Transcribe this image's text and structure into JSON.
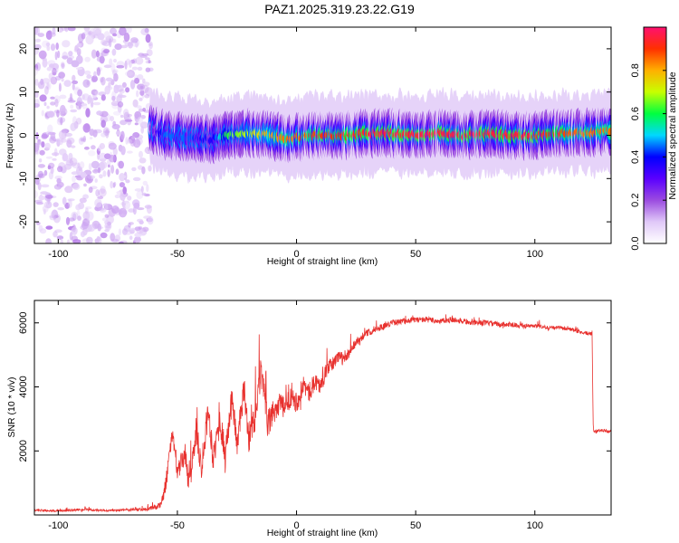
{
  "figure_title": "PAZ1.2025.319.23.22.G19",
  "chart_data": [
    {
      "type": "heatmap",
      "title": "",
      "xlabel": "Height of straight line (km)",
      "ylabel": "Frequency (Hz)",
      "xlim": [
        -110,
        132
      ],
      "ylim": [
        -25,
        25
      ],
      "xticks": [
        -100,
        -50,
        0,
        50,
        100
      ],
      "yticks": [
        -20,
        -10,
        0,
        10,
        20
      ],
      "colorbar": {
        "label": "Normalized spectral amplitude",
        "range": [
          0,
          1
        ],
        "ticks": [
          0.0,
          0.2,
          0.4,
          0.6,
          0.8
        ],
        "colors": [
          "#ffffff",
          "#e0c8f8",
          "#9b4be0",
          "#5a00ff",
          "#0000ff",
          "#00d8ff",
          "#00ff40",
          "#c8ff00",
          "#ffb000",
          "#ff3000",
          "#ff1070"
        ]
      },
      "noise_region": {
        "x_range": [
          -110,
          -61
        ],
        "f_range": [
          -25,
          25
        ],
        "max_amplitude": 0.1
      },
      "ridge": {
        "x": [
          -61,
          -55,
          -45,
          -35,
          -30,
          -20,
          -10,
          -5,
          0,
          10,
          20,
          30,
          40,
          50,
          60,
          70,
          80,
          90,
          100,
          110,
          120,
          132
        ],
        "f": [
          1.5,
          0,
          -0.5,
          -1,
          0,
          0.5,
          0,
          -1,
          -0.5,
          0,
          0,
          0.5,
          0.5,
          0,
          0.5,
          0,
          0.5,
          0,
          0,
          0.5,
          0.5,
          1
        ],
        "amplitude": [
          0.2,
          0.45,
          0.45,
          0.35,
          0.6,
          0.7,
          0.8,
          0.85,
          0.85,
          0.9,
          0.9,
          0.95,
          0.95,
          0.95,
          0.95,
          0.95,
          0.95,
          0.95,
          0.95,
          0.9,
          0.85,
          0.85
        ]
      }
    },
    {
      "type": "line",
      "title": "",
      "xlabel": "Height of straight line (km)",
      "ylabel": "SNR (10 * v/v)",
      "xlim": [
        -110,
        132
      ],
      "ylim": [
        0,
        6700
      ],
      "xticks": [
        -100,
        -50,
        0,
        50,
        100
      ],
      "yticks": [
        2000,
        4000,
        6000
      ],
      "color": "#e8312e",
      "series": [
        {
          "name": "SNR",
          "x": [
            -110,
            -100,
            -90,
            -80,
            -70,
            -62,
            -57,
            -55,
            -52,
            -50,
            -47,
            -45,
            -42,
            -40,
            -37,
            -35,
            -32,
            -30,
            -27,
            -25,
            -22,
            -20,
            -17,
            -15,
            -12,
            -10,
            -7,
            -5,
            -2,
            0,
            3,
            5,
            8,
            10,
            13,
            15,
            18,
            20,
            23,
            25,
            28,
            30,
            35,
            40,
            45,
            50,
            55,
            60,
            65,
            70,
            75,
            80,
            85,
            90,
            95,
            100,
            105,
            110,
            115,
            120,
            124,
            124.5,
            125,
            128,
            132
          ],
          "y": [
            150,
            120,
            170,
            130,
            160,
            180,
            300,
            900,
            2600,
            1300,
            1900,
            900,
            2700,
            1500,
            3300,
            1800,
            3000,
            1700,
            3700,
            2200,
            3900,
            2400,
            3100,
            4500,
            2800,
            3200,
            3500,
            3300,
            3800,
            3500,
            4100,
            3800,
            4200,
            4000,
            4600,
            4700,
            5000,
            4800,
            5200,
            5400,
            5600,
            5700,
            5850,
            6000,
            6050,
            6100,
            6100,
            6050,
            6100,
            6050,
            6000,
            6000,
            5950,
            5950,
            5900,
            5900,
            5850,
            5850,
            5800,
            5700,
            5650,
            2700,
            2600,
            2650,
            2600
          ],
          "jitter_amplitude": [
            80,
            60,
            80,
            60,
            80,
            120,
            200,
            500,
            500,
            500,
            800,
            800,
            900,
            900,
            900,
            900,
            900,
            900,
            900,
            900,
            900,
            900,
            1000,
            1000,
            900,
            900,
            700,
            700,
            700,
            700,
            600,
            600,
            550,
            550,
            450,
            450,
            400,
            400,
            300,
            300,
            250,
            220,
            200,
            180,
            180,
            180,
            180,
            180,
            180,
            180,
            180,
            170,
            160,
            150,
            140,
            130,
            120,
            120,
            120,
            120,
            110,
            100,
            90,
            90,
            90
          ]
        }
      ]
    }
  ]
}
